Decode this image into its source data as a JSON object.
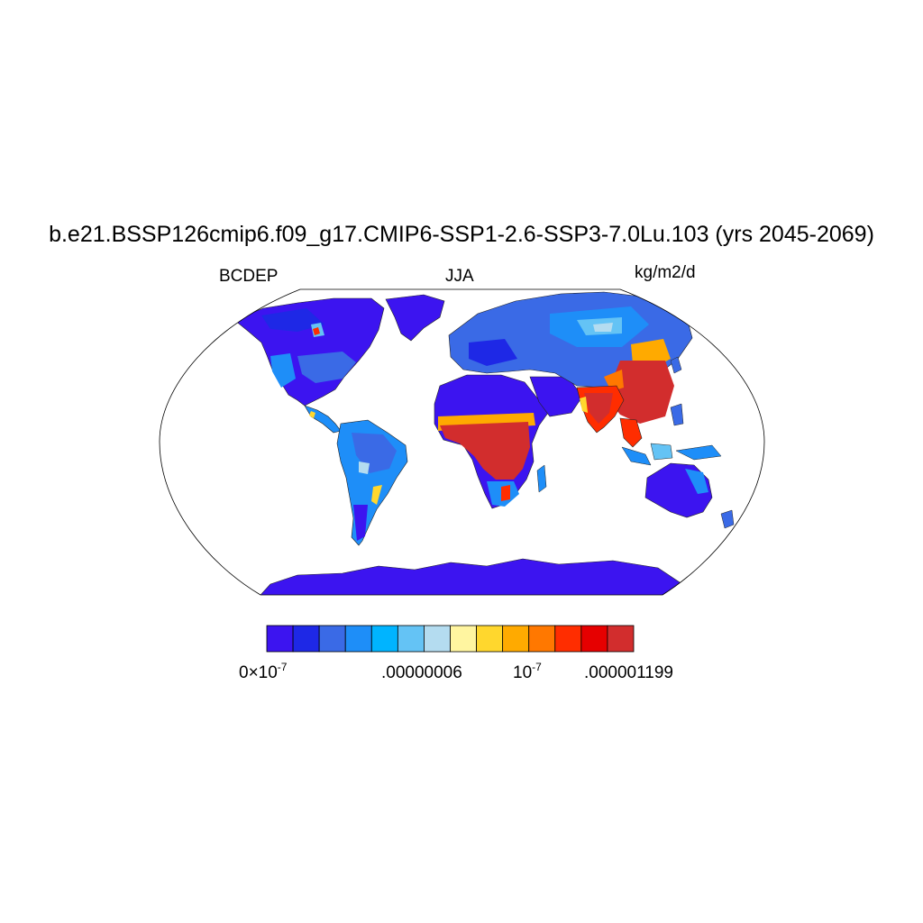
{
  "header": {
    "title": "b.e21.BSSP126cmip6.f09_g17.CMIP6-SSP1-2.6-SSP3-7.0Lu.103 (yrs 2045-2069)",
    "variable": "BCDEP",
    "season": "JJA",
    "units": "kg/m2/d"
  },
  "map": {
    "projection": "Robinson",
    "field": "black carbon deposition",
    "landmasses": [
      "north-america",
      "greenland",
      "south-america",
      "africa",
      "eurasia",
      "arabia",
      "india",
      "southeast-asia",
      "australia",
      "antarctica"
    ]
  },
  "colorbar": {
    "colors": [
      "#3c14f0",
      "#1e28e6",
      "#3a6ae6",
      "#1e8ef8",
      "#00b4ff",
      "#64c3f5",
      "#b4dcf0",
      "#fff5a0",
      "#ffd72d",
      "#ffaa00",
      "#ff7800",
      "#ff2d00",
      "#e60000",
      "#d22d2d"
    ],
    "labels": [
      {
        "base": "0×10",
        "exp": "-7"
      },
      {
        "base": ".00000006",
        "exp": ""
      },
      {
        "base": "10",
        "exp": "-7"
      },
      {
        "base": ".000001199",
        "exp": ""
      }
    ]
  }
}
